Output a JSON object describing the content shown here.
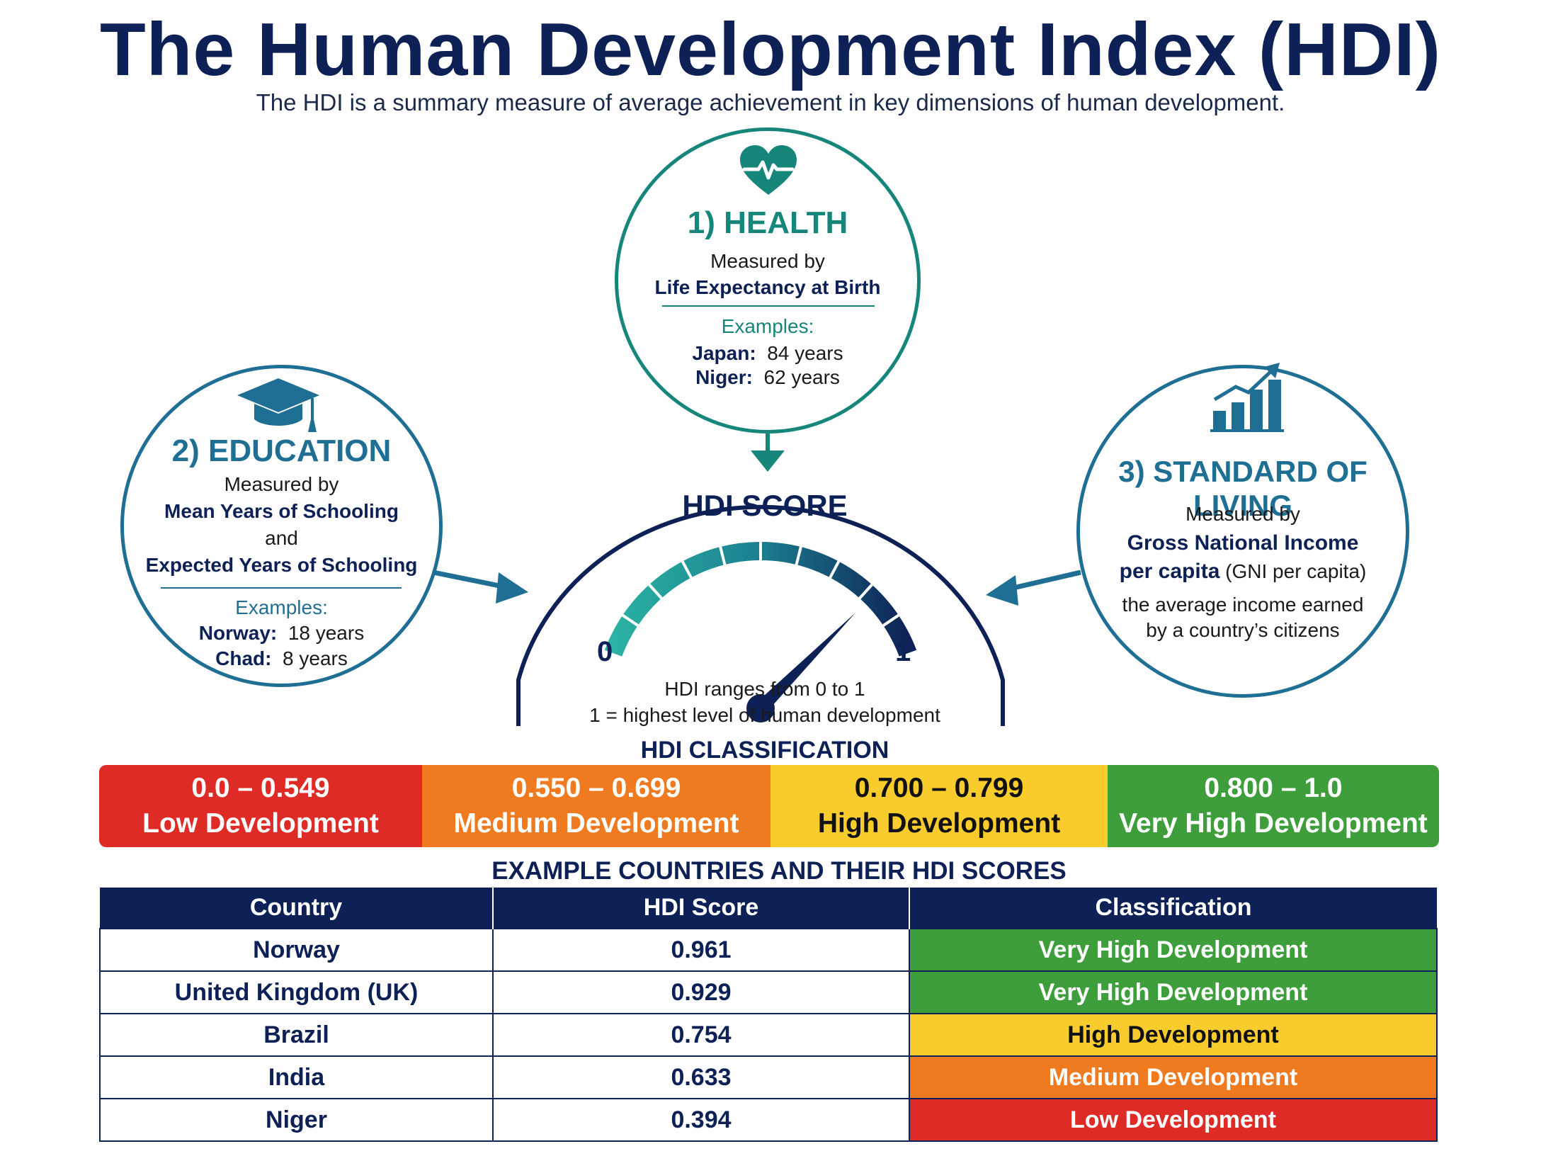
{
  "header": {
    "title": "The Human Development Index (HDI)",
    "subtitle": "The HDI is a summary measure of average achievement in key dimensions of human development."
  },
  "health": {
    "icon": "heart-pulse-icon",
    "title": "1) HEALTH",
    "measured_by": "Measured by",
    "metric": "Life Expectancy at Birth",
    "examples_label": "Examples:",
    "examples": [
      {
        "country": "Japan:",
        "value": "84 years"
      },
      {
        "country": "Niger:",
        "value": "62 years"
      }
    ]
  },
  "education": {
    "icon": "graduation-cap-icon",
    "title": "2) EDUCATION",
    "measured_by": "Measured by",
    "metric1": "Mean Years of Schooling",
    "and": "and",
    "metric2": "Expected Years of Schooling",
    "examples_label": "Examples:",
    "examples": [
      {
        "country": "Norway:",
        "value": "18 years"
      },
      {
        "country": "Chad:",
        "value": "8 years"
      }
    ]
  },
  "living": {
    "icon": "bar-chart-growth-icon",
    "title": "3) STANDARD OF LIVING",
    "measured_by": "Measured by",
    "metric1": "Gross National Income",
    "metric2_bold": "per capita",
    "metric2_rest": " (GNI per capita)",
    "desc1": "the average income earned",
    "desc2": "by a country’s citizens"
  },
  "gauge": {
    "title": "HDI SCORE",
    "min_label": "0",
    "max_label": "1",
    "needle_value": 0.82,
    "note1": "HDI ranges from 0 to 1",
    "note2": "1 = highest level of human development"
  },
  "classification": {
    "title": "HDI CLASSIFICATION",
    "bands": [
      {
        "range": "0.0 – 0.549",
        "label": "Low Development",
        "color": "#de2b26"
      },
      {
        "range": "0.550 – 0.699",
        "label": "Medium Development",
        "color": "#ef7a1f"
      },
      {
        "range": "0.700 – 0.799",
        "label": "High Development",
        "color": "#f8cc2c"
      },
      {
        "range": "0.800 – 1.0",
        "label": "Very High Development",
        "color": "#3e9e3b"
      }
    ]
  },
  "table": {
    "title": "EXAMPLE COUNTRIES AND THEIR HDI SCORES",
    "headers": [
      "Country",
      "HDI Score",
      "Classification"
    ],
    "rows": [
      {
        "country": "Norway",
        "score": "0.961",
        "classification": "Very High Development",
        "color": "#3e9e3b"
      },
      {
        "country": "United Kingdom (UK)",
        "score": "0.929",
        "classification": "Very High Development",
        "color": "#3e9e3b"
      },
      {
        "country": "Brazil",
        "score": "0.754",
        "classification": "High Development",
        "color": "#f8cc2c"
      },
      {
        "country": "India",
        "score": "0.633",
        "classification": "Medium Development",
        "color": "#ef7a1f"
      },
      {
        "country": "Niger",
        "score": "0.394",
        "classification": "Low Development",
        "color": "#de2b26"
      }
    ]
  }
}
